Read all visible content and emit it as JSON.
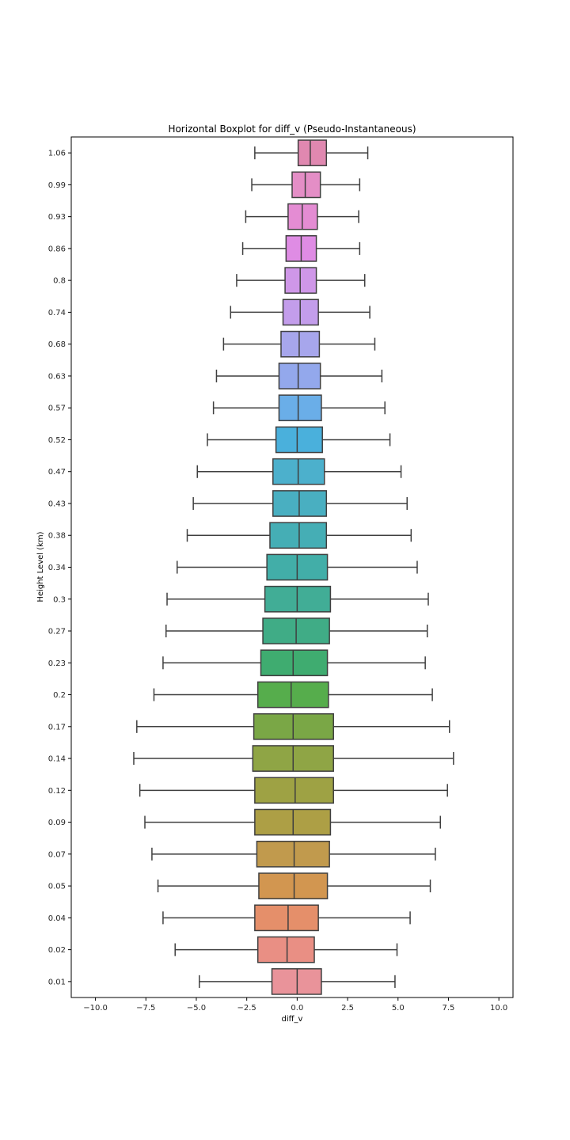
{
  "chart_data": {
    "type": "boxplot",
    "orientation": "horizontal",
    "title": "Horizontal Boxplot for diff_v (Pseudo-Instantaneous)",
    "xlabel": "diff_v",
    "ylabel": "Height Level (km)",
    "xlim": [
      -11.2,
      10.7
    ],
    "xticks": [
      -10.0,
      -7.5,
      -5.0,
      -2.5,
      0.0,
      2.5,
      5.0,
      7.5,
      10.0
    ],
    "xtick_labels": [
      "−10.0",
      "−7.5",
      "−5.0",
      "−2.5",
      "0.0",
      "2.5",
      "5.0",
      "7.5",
      "10.0"
    ],
    "grid": false,
    "categories": [
      "1.06",
      "0.99",
      "0.93",
      "0.86",
      "0.8",
      "0.74",
      "0.68",
      "0.63",
      "0.57",
      "0.52",
      "0.47",
      "0.43",
      "0.38",
      "0.34",
      "0.3",
      "0.27",
      "0.23",
      "0.2",
      "0.17",
      "0.14",
      "0.12",
      "0.09",
      "0.07",
      "0.05",
      "0.04",
      "0.02",
      "0.01"
    ],
    "boxes": [
      {
        "level": "1.06",
        "whisker_low": -2.1,
        "q1": 0.05,
        "median": 0.65,
        "q3": 1.45,
        "whisker_high": 3.5,
        "color": "#e088b0"
      },
      {
        "level": "0.99",
        "whisker_low": -2.25,
        "q1": -0.25,
        "median": 0.4,
        "q3": 1.15,
        "whisker_high": 3.1,
        "color": "#e48ec6"
      },
      {
        "level": "0.93",
        "whisker_low": -2.55,
        "q1": -0.45,
        "median": 0.25,
        "q3": 1.0,
        "whisker_high": 3.05,
        "color": "#e48cd3"
      },
      {
        "level": "0.86",
        "whisker_low": -2.7,
        "q1": -0.55,
        "median": 0.2,
        "q3": 0.95,
        "whisker_high": 3.1,
        "color": "#df8ce4"
      },
      {
        "level": "0.8",
        "whisker_low": -3.0,
        "q1": -0.6,
        "median": 0.15,
        "q3": 0.95,
        "whisker_high": 3.35,
        "color": "#cf97e8"
      },
      {
        "level": "0.74",
        "whisker_low": -3.3,
        "q1": -0.7,
        "median": 0.15,
        "q3": 1.05,
        "whisker_high": 3.6,
        "color": "#c39deb"
      },
      {
        "level": "0.68",
        "whisker_low": -3.65,
        "q1": -0.8,
        "median": 0.1,
        "q3": 1.1,
        "whisker_high": 3.85,
        "color": "#a7a6ec"
      },
      {
        "level": "0.63",
        "whisker_low": -4.0,
        "q1": -0.9,
        "median": 0.05,
        "q3": 1.15,
        "whisker_high": 4.2,
        "color": "#93a8ec"
      },
      {
        "level": "0.57",
        "whisker_low": -4.15,
        "q1": -0.9,
        "median": 0.05,
        "q3": 1.2,
        "whisker_high": 4.35,
        "color": "#6aaee8"
      },
      {
        "level": "0.52",
        "whisker_low": -4.45,
        "q1": -1.05,
        "median": 0.0,
        "q3": 1.25,
        "whisker_high": 4.6,
        "color": "#4ab0dc"
      },
      {
        "level": "0.47",
        "whisker_low": -4.95,
        "q1": -1.2,
        "median": 0.05,
        "q3": 1.35,
        "whisker_high": 5.15,
        "color": "#4cb0cc"
      },
      {
        "level": "0.43",
        "whisker_low": -5.15,
        "q1": -1.2,
        "median": 0.1,
        "q3": 1.45,
        "whisker_high": 5.45,
        "color": "#49afc1"
      },
      {
        "level": "0.38",
        "whisker_low": -5.45,
        "q1": -1.35,
        "median": 0.1,
        "q3": 1.45,
        "whisker_high": 5.65,
        "color": "#45aeb5"
      },
      {
        "level": "0.34",
        "whisker_low": -5.95,
        "q1": -1.5,
        "median": 0.0,
        "q3": 1.5,
        "whisker_high": 5.95,
        "color": "#42aea8"
      },
      {
        "level": "0.3",
        "whisker_low": -6.45,
        "q1": -1.6,
        "median": 0.0,
        "q3": 1.65,
        "whisker_high": 6.5,
        "color": "#41ad96"
      },
      {
        "level": "0.27",
        "whisker_low": -6.5,
        "q1": -1.7,
        "median": -0.05,
        "q3": 1.6,
        "whisker_high": 6.45,
        "color": "#40ac86"
      },
      {
        "level": "0.23",
        "whisker_low": -6.65,
        "q1": -1.8,
        "median": -0.2,
        "q3": 1.5,
        "whisker_high": 6.35,
        "color": "#3fac70"
      },
      {
        "level": "0.2",
        "whisker_low": -7.1,
        "q1": -1.95,
        "median": -0.3,
        "q3": 1.55,
        "whisker_high": 6.7,
        "color": "#56ad4c"
      },
      {
        "level": "0.17",
        "whisker_low": -7.95,
        "q1": -2.15,
        "median": -0.2,
        "q3": 1.8,
        "whisker_high": 7.55,
        "color": "#7aa746"
      },
      {
        "level": "0.14",
        "whisker_low": -8.1,
        "q1": -2.2,
        "median": -0.2,
        "q3": 1.8,
        "whisker_high": 7.75,
        "color": "#8fa545"
      },
      {
        "level": "0.12",
        "whisker_low": -7.8,
        "q1": -2.1,
        "median": -0.1,
        "q3": 1.8,
        "whisker_high": 7.45,
        "color": "#9ea244"
      },
      {
        "level": "0.09",
        "whisker_low": -7.55,
        "q1": -2.1,
        "median": -0.2,
        "q3": 1.65,
        "whisker_high": 7.1,
        "color": "#ad9f45"
      },
      {
        "level": "0.07",
        "whisker_low": -7.2,
        "q1": -2.0,
        "median": -0.15,
        "q3": 1.6,
        "whisker_high": 6.85,
        "color": "#c19a4d"
      },
      {
        "level": "0.05",
        "whisker_low": -6.9,
        "q1": -1.9,
        "median": -0.15,
        "q3": 1.5,
        "whisker_high": 6.6,
        "color": "#d29650"
      },
      {
        "level": "0.04",
        "whisker_low": -6.65,
        "q1": -2.1,
        "median": -0.45,
        "q3": 1.05,
        "whisker_high": 5.6,
        "color": "#e58f6a"
      },
      {
        "level": "0.02",
        "whisker_low": -6.05,
        "q1": -1.95,
        "median": -0.5,
        "q3": 0.85,
        "whisker_high": 4.95,
        "color": "#e98f84"
      },
      {
        "level": "0.01",
        "whisker_low": -4.85,
        "q1": -1.25,
        "median": 0.0,
        "q3": 1.2,
        "whisker_high": 4.85,
        "color": "#e9939a"
      }
    ]
  }
}
